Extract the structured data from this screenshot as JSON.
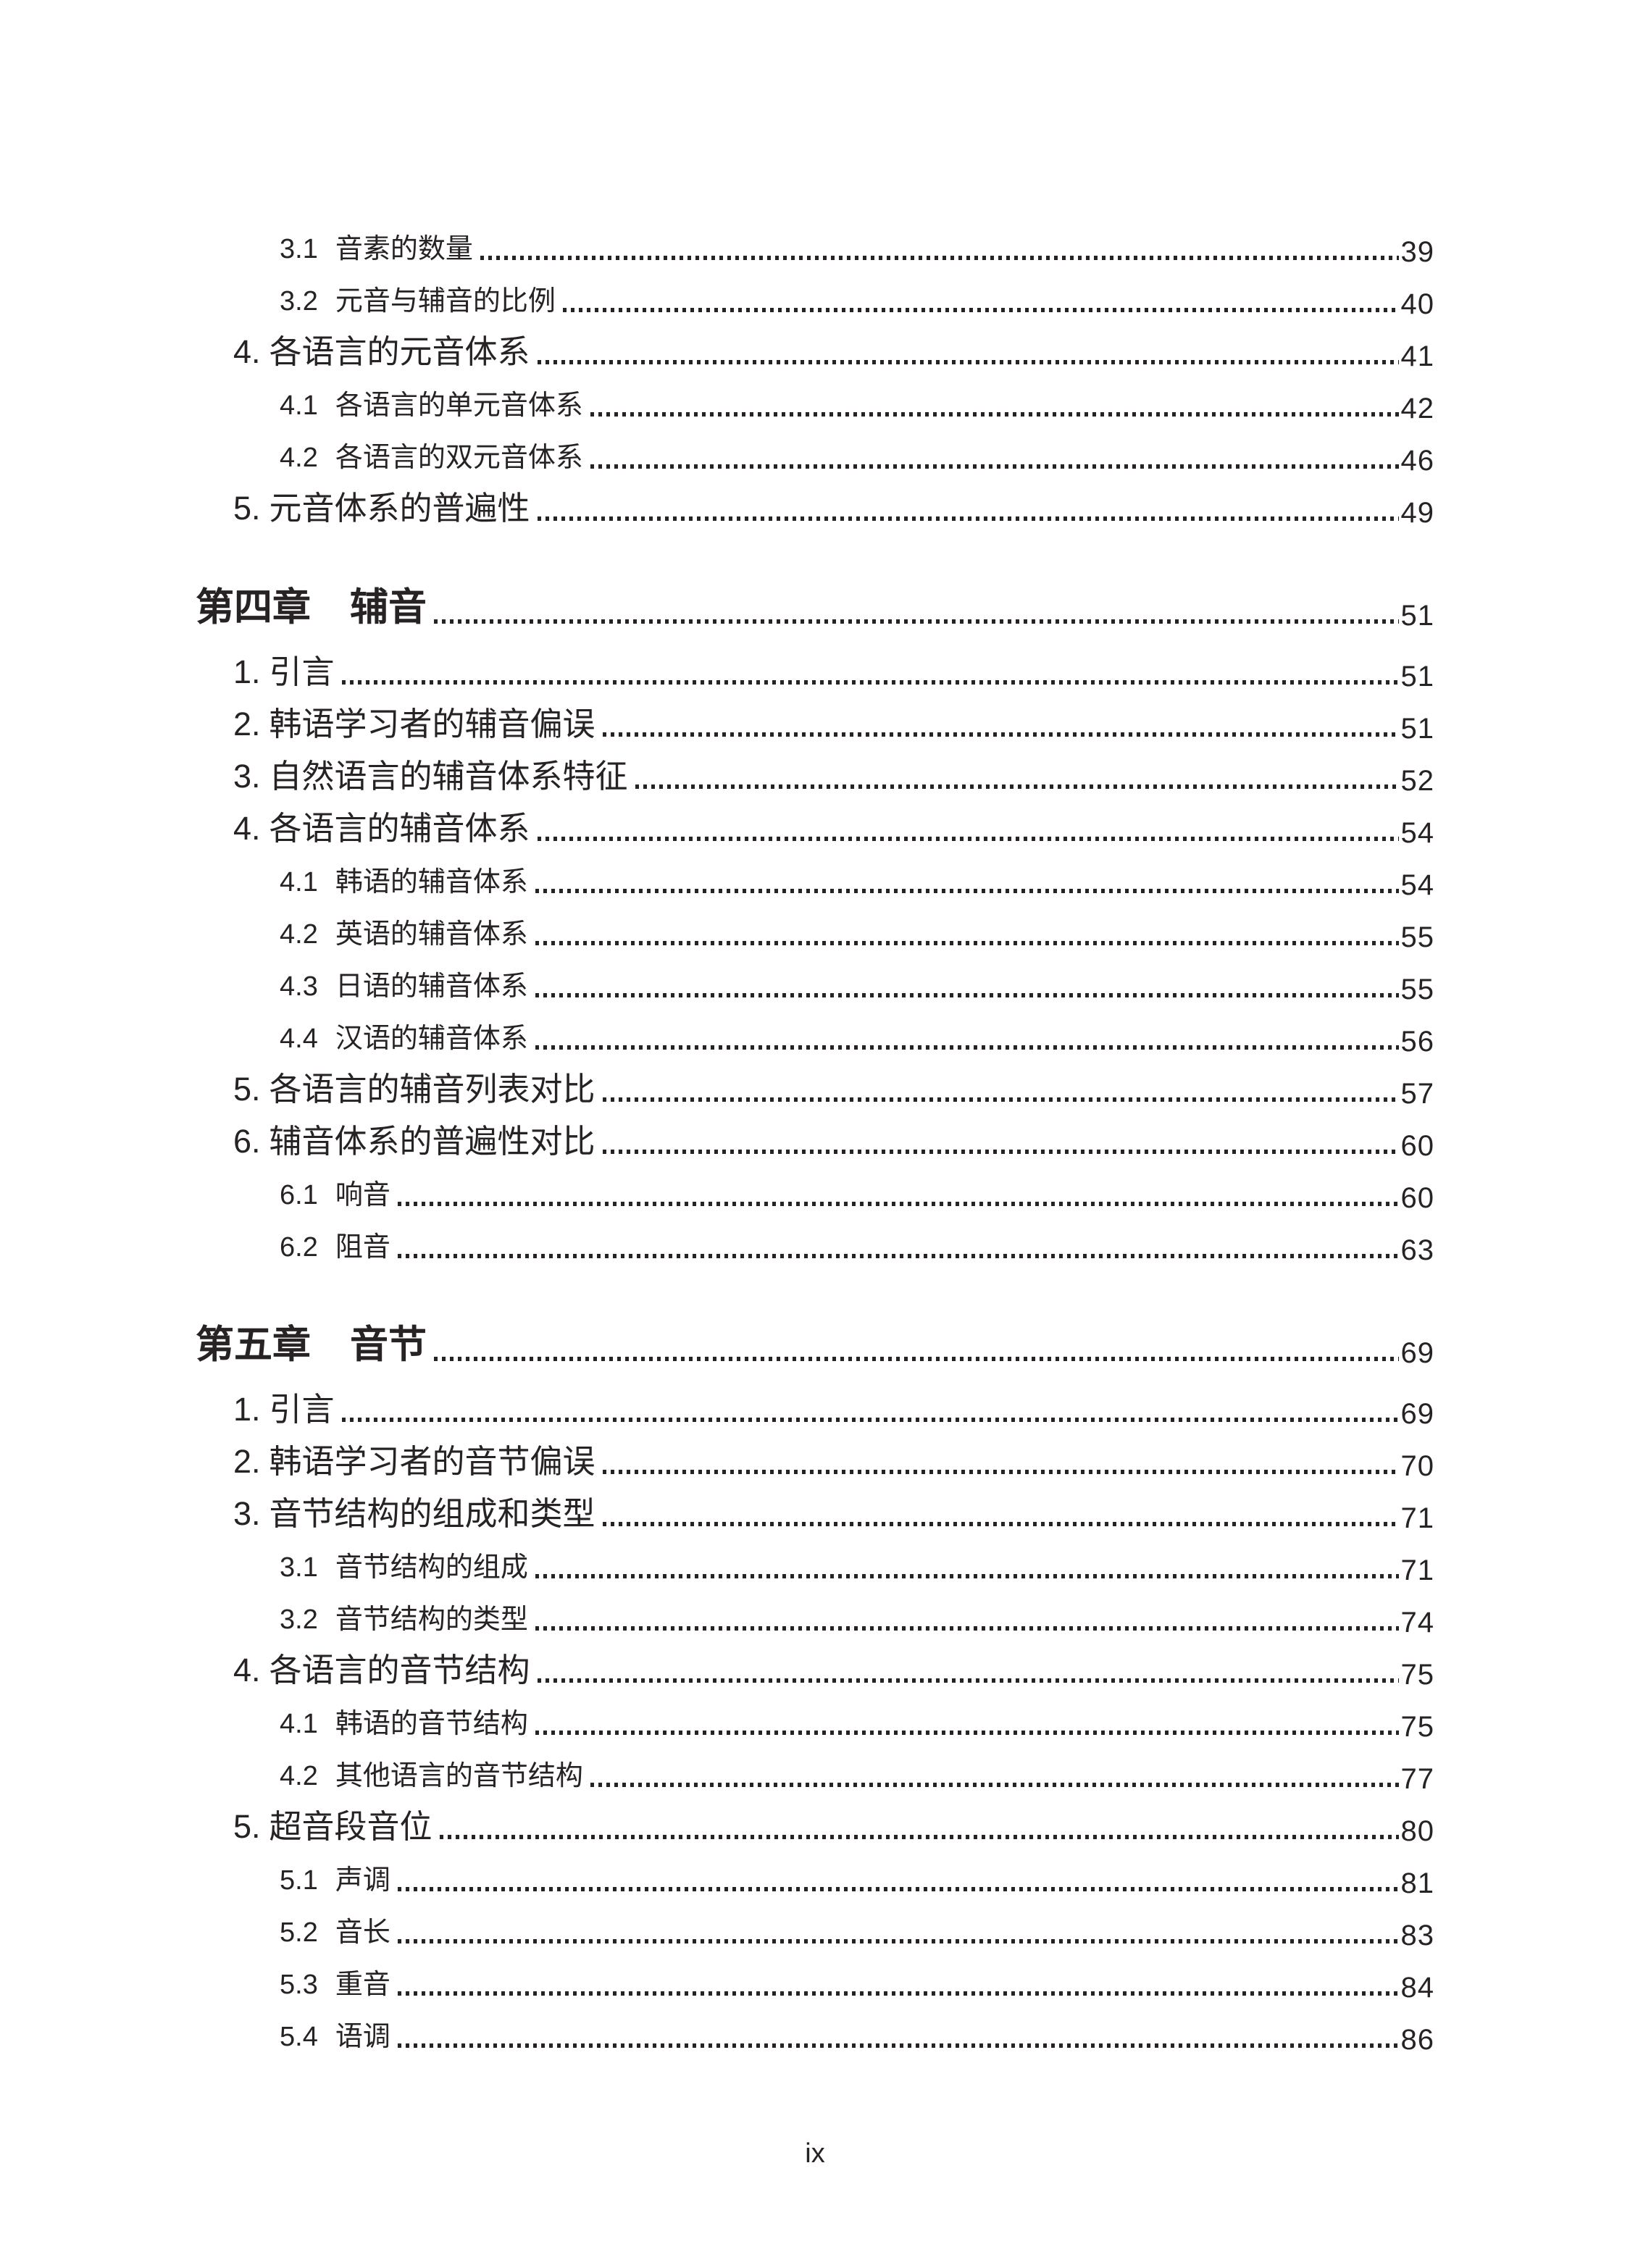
{
  "page": {
    "footer_page_number": "ix",
    "text_color": "#272223"
  },
  "toc": {
    "entries": [
      {
        "type": "sub",
        "num": "3.1",
        "text": "音素的数量",
        "page": "39"
      },
      {
        "type": "sub",
        "num": "3.2",
        "text": "元音与辅音的比例",
        "page": "40"
      },
      {
        "type": "item",
        "num": "4.",
        "text": "各语言的元音体系",
        "page": "41"
      },
      {
        "type": "sub",
        "num": "4.1",
        "text": "各语言的单元音体系",
        "page": "42"
      },
      {
        "type": "sub",
        "num": "4.2",
        "text": "各语言的双元音体系",
        "page": "46"
      },
      {
        "type": "item",
        "num": "5.",
        "text": "元音体系的普遍性",
        "page": "49"
      },
      {
        "type": "chapter",
        "num": "第四章",
        "text": "辅音",
        "page": "51"
      },
      {
        "type": "item",
        "num": "1.",
        "text": "引言",
        "page": "51"
      },
      {
        "type": "item",
        "num": "2.",
        "text": "韩语学习者的辅音偏误",
        "page": "51"
      },
      {
        "type": "item",
        "num": "3.",
        "text": "自然语言的辅音体系特征",
        "page": "52"
      },
      {
        "type": "item",
        "num": "4.",
        "text": "各语言的辅音体系",
        "page": "54"
      },
      {
        "type": "sub",
        "num": "4.1",
        "text": "韩语的辅音体系",
        "page": "54"
      },
      {
        "type": "sub",
        "num": "4.2",
        "text": "英语的辅音体系",
        "page": "55"
      },
      {
        "type": "sub",
        "num": "4.3",
        "text": "日语的辅音体系",
        "page": "55"
      },
      {
        "type": "sub",
        "num": "4.4",
        "text": "汉语的辅音体系",
        "page": "56"
      },
      {
        "type": "item",
        "num": "5.",
        "text": "各语言的辅音列表对比",
        "page": "57"
      },
      {
        "type": "item",
        "num": "6.",
        "text": "辅音体系的普遍性对比",
        "page": "60"
      },
      {
        "type": "sub",
        "num": "6.1",
        "text": "响音",
        "page": "60"
      },
      {
        "type": "sub",
        "num": "6.2",
        "text": "阻音",
        "page": "63"
      },
      {
        "type": "chapter",
        "num": "第五章",
        "text": "音节",
        "page": "69"
      },
      {
        "type": "item",
        "num": "1.",
        "text": "引言",
        "page": "69"
      },
      {
        "type": "item",
        "num": "2.",
        "text": "韩语学习者的音节偏误",
        "page": "70"
      },
      {
        "type": "item",
        "num": "3.",
        "text": "音节结构的组成和类型",
        "page": "71"
      },
      {
        "type": "sub",
        "num": "3.1",
        "text": "音节结构的组成",
        "page": "71"
      },
      {
        "type": "sub",
        "num": "3.2",
        "text": "音节结构的类型",
        "page": "74"
      },
      {
        "type": "item",
        "num": "4.",
        "text": "各语言的音节结构",
        "page": "75"
      },
      {
        "type": "sub",
        "num": "4.1",
        "text": "韩语的音节结构",
        "page": "75"
      },
      {
        "type": "sub",
        "num": "4.2",
        "text": "其他语言的音节结构",
        "page": "77"
      },
      {
        "type": "item",
        "num": "5.",
        "text": "超音段音位",
        "page": "80"
      },
      {
        "type": "sub",
        "num": "5.1",
        "text": "声调",
        "page": "81"
      },
      {
        "type": "sub",
        "num": "5.2",
        "text": "音长",
        "page": "83"
      },
      {
        "type": "sub",
        "num": "5.3",
        "text": "重音",
        "page": "84"
      },
      {
        "type": "sub",
        "num": "5.4",
        "text": "语调",
        "page": "86"
      }
    ]
  }
}
